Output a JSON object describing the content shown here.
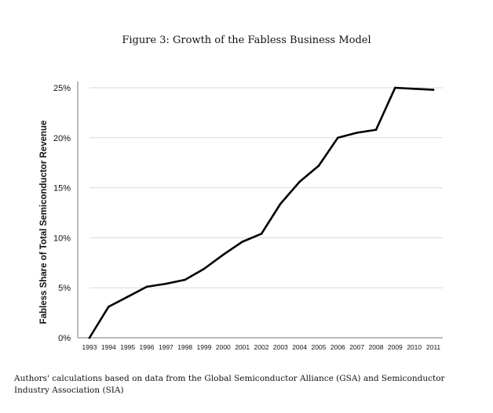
{
  "figure": {
    "title": "Figure 3: Growth of the Fabless Business Model",
    "caption": "Authors' calculations based on data from the Global Semiconductor Alliance (GSA) and Semiconductor Industry Association (SIA)"
  },
  "chart_data": {
    "type": "line",
    "title": "",
    "xlabel": "",
    "ylabel": "Fabless Share of Total Semiconductor Revenue",
    "categories": [
      "1993",
      "1994",
      "1995",
      "1996",
      "1997",
      "1998",
      "1999",
      "2000",
      "2001",
      "2002",
      "2003",
      "2004",
      "2005",
      "2006",
      "2007",
      "2008",
      "2009",
      "2010",
      "2011"
    ],
    "series": [
      {
        "values": [
          0,
          3.1,
          4.1,
          5.1,
          5.4,
          5.8,
          6.9,
          8.3,
          9.6,
          10.4,
          13.4,
          15.6,
          17.2,
          20.0,
          20.5,
          20.8,
          25.0,
          24.9,
          24.8
        ]
      }
    ],
    "ylim": [
      0,
      25
    ],
    "yticks": [
      0,
      5,
      10,
      15,
      20,
      25
    ],
    "ytick_labels": [
      "0%",
      "5%",
      "10%",
      "15%",
      "20%",
      "25%"
    ],
    "grid": true,
    "line_color": "#000000",
    "grid_color": "#d9d9d9"
  }
}
